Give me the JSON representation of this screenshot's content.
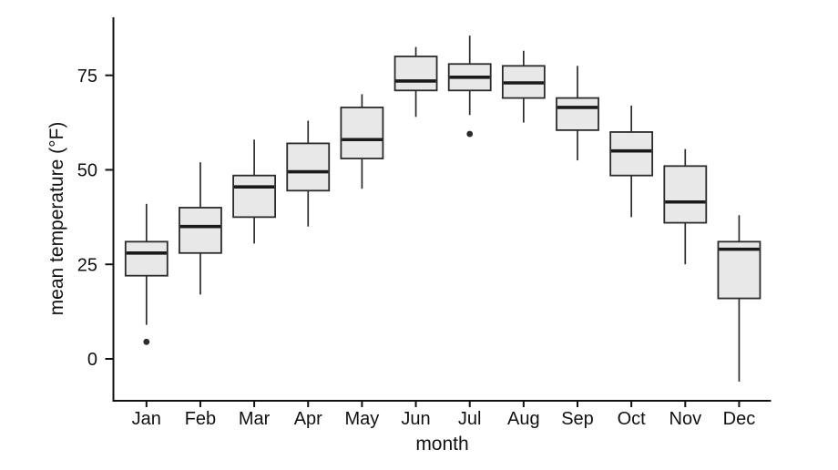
{
  "figure": {
    "background": "#ffffff"
  },
  "chart_data": {
    "type": "box",
    "title": "",
    "xlabel": "month",
    "ylabel": "mean temperature (°F)",
    "categories": [
      "Jan",
      "Feb",
      "Mar",
      "Apr",
      "May",
      "Jun",
      "Jul",
      "Aug",
      "Sep",
      "Oct",
      "Nov",
      "Dec"
    ],
    "y_ticks": [
      0,
      25,
      50,
      75
    ],
    "ylim": [
      -11,
      90
    ],
    "grid": false,
    "legend": "none",
    "boxes": [
      {
        "month": "Jan",
        "min": 9,
        "q1": 22,
        "median": 28,
        "q3": 31,
        "max": 41,
        "outliers": [
          4.5
        ]
      },
      {
        "month": "Feb",
        "min": 17,
        "q1": 28,
        "median": 35,
        "q3": 40,
        "max": 52,
        "outliers": []
      },
      {
        "month": "Mar",
        "min": 30.5,
        "q1": 37.5,
        "median": 45.5,
        "q3": 48.5,
        "max": 58,
        "outliers": []
      },
      {
        "month": "Apr",
        "min": 35,
        "q1": 44.5,
        "median": 49.5,
        "q3": 57,
        "max": 63,
        "outliers": []
      },
      {
        "month": "May",
        "min": 45,
        "q1": 53,
        "median": 58,
        "q3": 66.5,
        "max": 70,
        "outliers": []
      },
      {
        "month": "Jun",
        "min": 64,
        "q1": 71,
        "median": 73.5,
        "q3": 80,
        "max": 82.5,
        "outliers": []
      },
      {
        "month": "Jul",
        "min": 64.5,
        "q1": 71,
        "median": 74.5,
        "q3": 78,
        "max": 85.5,
        "outliers": [
          59.5
        ]
      },
      {
        "month": "Aug",
        "min": 62.5,
        "q1": 69,
        "median": 73,
        "q3": 77.5,
        "max": 81.5,
        "outliers": []
      },
      {
        "month": "Sep",
        "min": 52.5,
        "q1": 60.5,
        "median": 66.5,
        "q3": 69,
        "max": 77.5,
        "outliers": []
      },
      {
        "month": "Oct",
        "min": 37.5,
        "q1": 48.5,
        "median": 55,
        "q3": 60,
        "max": 67,
        "outliers": []
      },
      {
        "month": "Nov",
        "min": 25,
        "q1": 36,
        "median": 41.5,
        "q3": 51,
        "max": 55.5,
        "outliers": []
      },
      {
        "month": "Dec",
        "min": -6,
        "q1": 16,
        "median": 29,
        "q3": 31,
        "max": 38,
        "outliers": []
      }
    ],
    "style": {
      "box_fill": "#e8e8e8",
      "box_stroke": "#2b2b2b",
      "whisker_color": "#2b2b2b",
      "median_color": "#1a1a1a",
      "outlier_color": "#2b2b2b",
      "axis_color": "#111111",
      "text_color": "#111111"
    }
  }
}
